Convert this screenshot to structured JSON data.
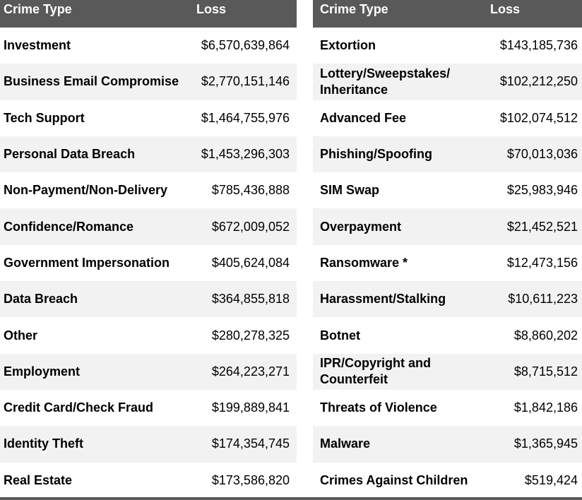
{
  "chart_data": {
    "type": "table",
    "columns": [
      "Crime Type",
      "Loss"
    ],
    "left": [
      {
        "type": "Investment",
        "loss": "$6,570,639,864"
      },
      {
        "type": "Business Email Compromise",
        "loss": "$2,770,151,146"
      },
      {
        "type": "Tech Support",
        "loss": "$1,464,755,976"
      },
      {
        "type": "Personal Data Breach",
        "loss": "$1,453,296,303"
      },
      {
        "type": "Non-Payment/Non-Delivery",
        "loss": "$785,436,888"
      },
      {
        "type": "Confidence/Romance",
        "loss": "$672,009,052"
      },
      {
        "type": "Government Impersonation",
        "loss": "$405,624,084"
      },
      {
        "type": "Data Breach",
        "loss": "$364,855,818"
      },
      {
        "type": "Other",
        "loss": "$280,278,325"
      },
      {
        "type": "Employment",
        "loss": "$264,223,271"
      },
      {
        "type": "Credit Card/Check Fraud",
        "loss": "$199,889,841"
      },
      {
        "type": "Identity Theft",
        "loss": "$174,354,745"
      },
      {
        "type": "Real Estate",
        "loss": "$173,586,820"
      }
    ],
    "right": [
      {
        "type": "Extortion",
        "loss": "$143,185,736"
      },
      {
        "type": "Lottery/Sweepstakes/ Inheritance",
        "loss": "$102,212,250"
      },
      {
        "type": "Advanced Fee",
        "loss": "$102,074,512"
      },
      {
        "type": "Phishing/Spoofing",
        "loss": "$70,013,036"
      },
      {
        "type": "SIM Swap",
        "loss": "$25,983,946"
      },
      {
        "type": "Overpayment",
        "loss": "$21,452,521"
      },
      {
        "type": "Ransomware *",
        "loss": "$12,473,156"
      },
      {
        "type": "Harassment/Stalking",
        "loss": "$10,611,223"
      },
      {
        "type": "Botnet",
        "loss": "$8,860,202"
      },
      {
        "type": "IPR/Copyright and Counterfeit",
        "loss": "$8,715,512"
      },
      {
        "type": "Threats of Violence",
        "loss": "$1,842,186"
      },
      {
        "type": "Malware",
        "loss": "$1,365,945"
      },
      {
        "type": "Crimes Against Children",
        "loss": "$519,424"
      }
    ]
  },
  "colors": {
    "header_bg": "#595959",
    "header_text": "#ffffff",
    "row_shade": "#f2f2f2"
  }
}
